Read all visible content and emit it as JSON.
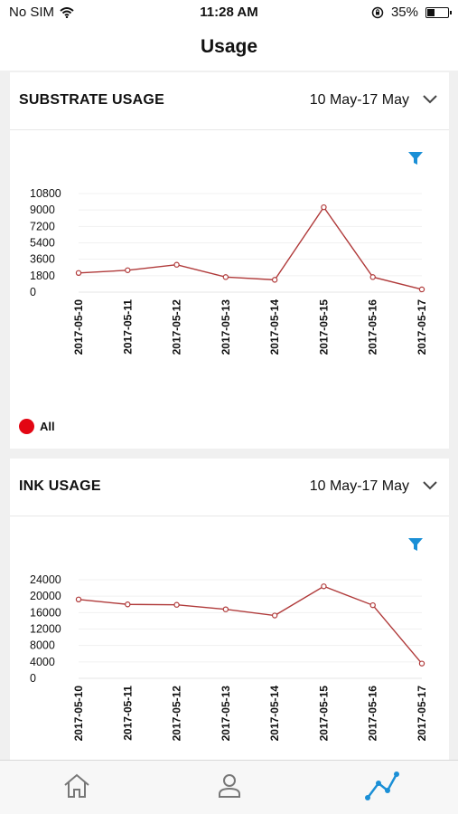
{
  "status": {
    "carrier": "No SIM",
    "time": "11:28 AM",
    "battery": "35%",
    "battery_level": 0.35
  },
  "header": {
    "title": "Usage"
  },
  "substrate": {
    "title": "SUBSTRATE USAGE",
    "range": "10 May-17 May",
    "legend": "All",
    "chart_data": {
      "type": "line",
      "categories": [
        "2017-05-10",
        "2017-05-11",
        "2017-05-12",
        "2017-05-13",
        "2017-05-14",
        "2017-05-15",
        "2017-05-16",
        "2017-05-17"
      ],
      "series": [
        {
          "values": [
            2100,
            2400,
            3000,
            1650,
            1350,
            9300,
            1650,
            300
          ]
        }
      ],
      "yticks": [
        0,
        1800,
        3600,
        5400,
        7200,
        9000,
        10800
      ],
      "ylim": [
        0,
        10800
      ],
      "color": "#b03a3a"
    }
  },
  "ink": {
    "title": "INK USAGE",
    "range": "10 May-17 May",
    "chart_data": {
      "type": "line",
      "categories": [
        "2017-05-10",
        "2017-05-11",
        "2017-05-12",
        "2017-05-13",
        "2017-05-14",
        "2017-05-15",
        "2017-05-16",
        "2017-05-17"
      ],
      "series": [
        {
          "values": [
            19200,
            18000,
            17900,
            16800,
            15300,
            22400,
            17800,
            3600
          ]
        }
      ],
      "yticks": [
        0,
        4000,
        8000,
        12000,
        16000,
        20000,
        24000
      ],
      "ylim": [
        0,
        24000
      ],
      "color": "#b03a3a"
    }
  },
  "tabs": {
    "active": "usage",
    "accent": "#1a8fd6",
    "inactive": "#777777"
  }
}
